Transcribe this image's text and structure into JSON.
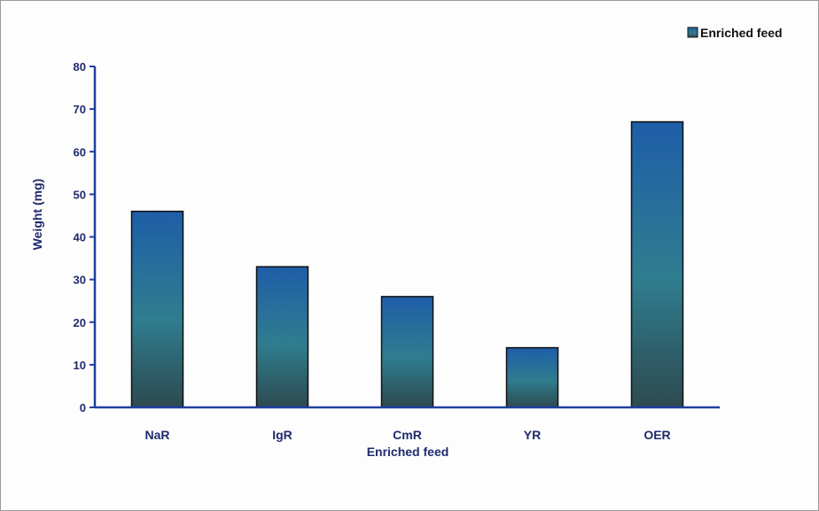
{
  "chart_data": {
    "type": "bar",
    "categories": [
      "NaR",
      "IgR",
      "CmR",
      "YR",
      "OER"
    ],
    "series": [
      {
        "name": "Enriched feed",
        "values": [
          46,
          33,
          26,
          14,
          67
        ]
      }
    ],
    "title": "",
    "xlabel": "Enriched feed",
    "ylabel": "Weight (mg)",
    "ylim": [
      0,
      80
    ],
    "yticks": [
      0,
      10,
      20,
      30,
      40,
      50,
      60,
      70,
      80
    ],
    "grid": false,
    "legend_position": "top-right",
    "colors": {
      "bar_top": "#1e5ea8",
      "bar_middle": "#2f7d8f",
      "bar_bottom": "#2e4a50",
      "bar_outline": "#111111",
      "axis": "#1f3fa0",
      "text": "#1f2a6e"
    }
  }
}
